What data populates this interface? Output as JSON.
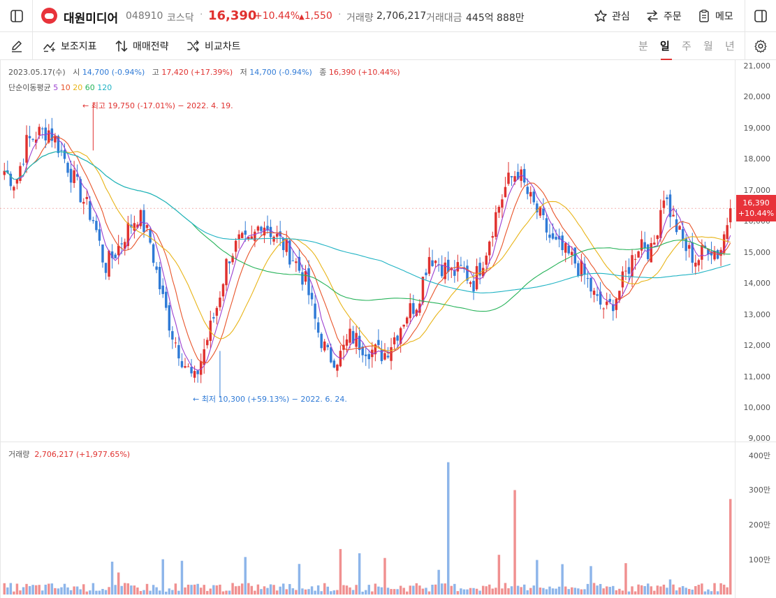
{
  "stock": {
    "name": "대원미디어",
    "code": "048910",
    "market": "코스닥",
    "price": "16,390",
    "change_pct": "+10.44%",
    "change_amt": "1,550",
    "volume_label": "거래량",
    "volume": "2,706,217",
    "amount_label": "거래대금",
    "amount": "445억 888만"
  },
  "actions": {
    "watch": "관심",
    "order": "주문",
    "memo": "메모"
  },
  "toolbar": {
    "indicator": "보조지표",
    "strategy": "매매전략",
    "compare": "비교차트",
    "periods": [
      "분",
      "일",
      "주",
      "월",
      "년"
    ],
    "active_period": "일"
  },
  "ohlc": {
    "date": "2023.05.17(수)",
    "open_label": "시",
    "open": "14,700 (-0.94%)",
    "high_label": "고",
    "high": "17,420 (+17.39%)",
    "low_label": "저",
    "low": "14,700 (-0.94%)",
    "close_label": "종",
    "close": "16,390 (+10.44%)"
  },
  "ma": {
    "label": "단순이동평균",
    "periods": [
      {
        "value": "5",
        "color": "#9b3fd0"
      },
      {
        "value": "10",
        "color": "#e8542a"
      },
      {
        "value": "20",
        "color": "#e8b417"
      },
      {
        "value": "60",
        "color": "#27b35a"
      },
      {
        "value": "120",
        "color": "#20b3c4"
      }
    ]
  },
  "annotations": {
    "high": "최고 19,750 (-17.01%) − 2022. 4. 19.",
    "low": "최저 10,300 (+59.13%) − 2022. 6. 24."
  },
  "price_tag": {
    "price": "16,390",
    "pct": "+10.44%"
  },
  "volume_panel": {
    "label": "거래량",
    "value": "2,706,217 (+1,977.65%)"
  },
  "colors": {
    "up": "#e0312f",
    "down": "#2f7ad6"
  },
  "chart_data": {
    "type": "candlestick",
    "price_axis": {
      "ticks": [
        "21,000",
        "20,000",
        "19,000",
        "18,000",
        "17,000",
        "16,000",
        "15,000",
        "14,000",
        "13,000",
        "12,000",
        "11,000",
        "10,000",
        "9,000"
      ],
      "ylim": [
        9000,
        21000
      ]
    },
    "volume_axis": {
      "ticks": [
        "400만",
        "300만",
        "200만",
        "100만"
      ],
      "ylim": [
        0,
        4000000
      ]
    },
    "last_close": 16390,
    "last_volume": 2706217,
    "high_point": 19750,
    "low_point": 10300,
    "anchor_closes": [
      17600,
      17200,
      18500,
      18800,
      18900,
      18300,
      17500,
      16700,
      16000,
      14500,
      15000,
      15700,
      16200,
      15400,
      13700,
      12400,
      11500,
      10800,
      12000,
      13200,
      14800,
      15300,
      15200,
      16000,
      15600,
      15200,
      14700,
      14000,
      12500,
      11600,
      11600,
      12300,
      12000,
      11800,
      11700,
      12300,
      13000,
      13400,
      14900,
      14600,
      14300,
      14400,
      14000,
      14900,
      16200,
      17200,
      17600,
      16700,
      16100,
      15300,
      15000,
      14700,
      14200,
      13400,
      13100,
      13700,
      14600,
      15400,
      14900,
      16900,
      15900,
      15100,
      14700,
      15200,
      14900,
      16390
    ]
  }
}
